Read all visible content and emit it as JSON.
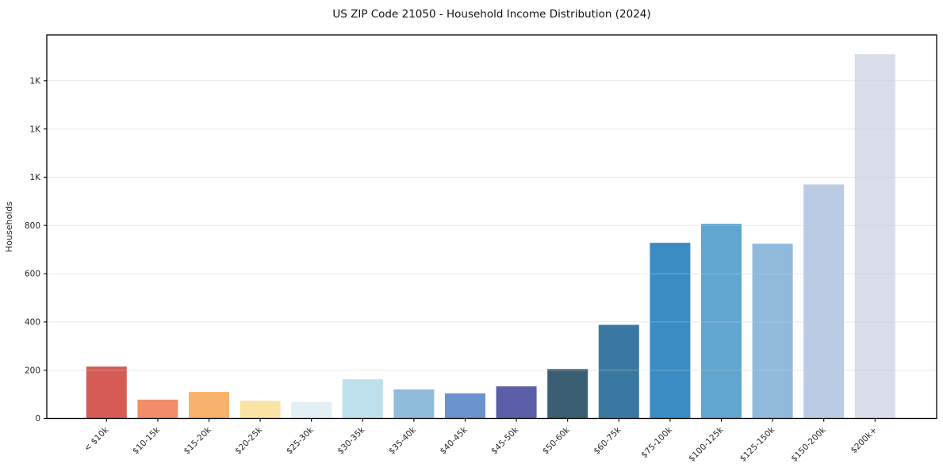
{
  "chart_data": {
    "type": "bar",
    "title": "US ZIP Code 21050 - Household Income Distribution (2024)",
    "xlabel": "",
    "ylabel": "Households",
    "categories": [
      "< $10k",
      "$10-15k",
      "$15-20k",
      "$20-25k",
      "$25-30k",
      "$30-35k",
      "$35-40k",
      "$40-45k",
      "$45-50k",
      "$50-60k",
      "$60-75k",
      "$75-100k",
      "$100-125k",
      "$125-150k",
      "$150-200k",
      "$200k+"
    ],
    "values": [
      215,
      78,
      110,
      73,
      68,
      162,
      120,
      104,
      133,
      205,
      388,
      728,
      807,
      724,
      970,
      1510
    ],
    "bar_colors": [
      "#d65b55",
      "#f18d6b",
      "#f8b26c",
      "#fbe3a3",
      "#e2eff5",
      "#bedfec",
      "#90bcdb",
      "#6b93ce",
      "#5b5fa7",
      "#3a5f72",
      "#3878a1",
      "#3a8cc3",
      "#5fa6d0",
      "#90badb",
      "#b9cce4",
      "#d9dcea"
    ],
    "ytick_values": [
      0,
      200,
      400,
      600,
      800,
      1000,
      1200,
      1400
    ],
    "ytick_labels": [
      "0",
      "200",
      "400",
      "600",
      "800",
      "1K",
      "1K",
      "1K"
    ],
    "ylim": [
      0,
      1590
    ],
    "xtick_rotation_deg": 45,
    "grid": "horizontal",
    "legend": "none",
    "background_color": "#ffffff",
    "axis_color": "#000000"
  }
}
